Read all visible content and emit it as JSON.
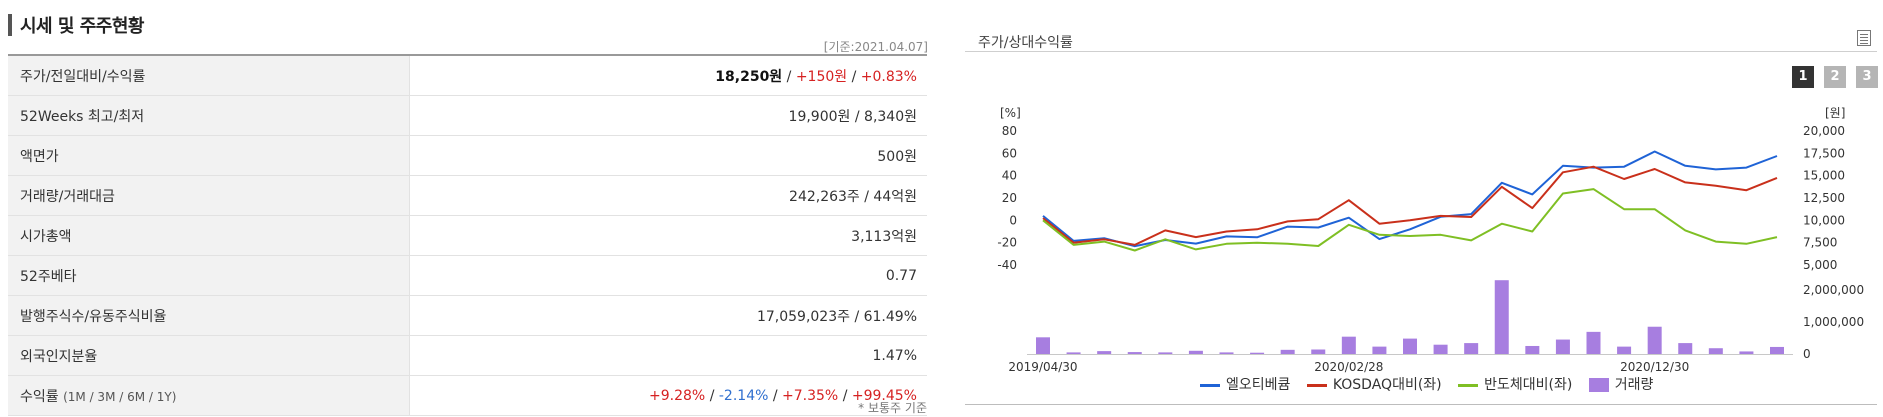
{
  "left": {
    "title": "시세 및 주주현황",
    "basis": "[기준:2021.04.07]",
    "rows": [
      {
        "label": "주가/전일대비/수익률",
        "price": "18,250원",
        "sep1": " / ",
        "change": "+150원",
        "sep2": " / ",
        "rate": "+0.83%"
      },
      {
        "label": "52Weeks 최고/최저",
        "value": "19,900원 / 8,340원"
      },
      {
        "label": "액면가",
        "value": "500원"
      },
      {
        "label": "거래량/거래대금",
        "value": "242,263주 / 44억원"
      },
      {
        "label": "시가총액",
        "value": "3,113억원"
      },
      {
        "label": "52주베타",
        "value": "0.77"
      },
      {
        "label": "발행주식수/유동주식비율",
        "value": "17,059,023주 / 61.49%"
      },
      {
        "label": "외국인지분율",
        "value": "1.47%"
      },
      {
        "label": "수익률",
        "label_sub": "(1M / 3M / 6M / 1Y)",
        "r1": "+9.28%",
        "r2": "-2.14%",
        "r3": "+7.35%",
        "r4": "+99.45%",
        "sep": " / "
      }
    ],
    "footnote": "* 보통주 기준"
  },
  "right": {
    "title": "주가/상대수익률",
    "pages": [
      "1",
      "2",
      "3"
    ],
    "legend": [
      "엘오티베큠",
      "KOSDAQ대비(좌)",
      "반도체대비(좌)",
      "거래량"
    ],
    "colors": {
      "stock": "#1f63d6",
      "kosdaq": "#c9301b",
      "semi": "#7fbf24",
      "volume": "#a77ee0"
    }
  },
  "chart_data": {
    "type": "line",
    "left_unit": "[%]",
    "right_unit": "[원]",
    "left_axis_ticks": [
      "80",
      "60",
      "40",
      "20",
      "0",
      "-20",
      "-40"
    ],
    "left_ylim": [
      -40,
      80
    ],
    "right_axis_ticks": [
      "20,000",
      "17,500",
      "15,000",
      "12,500",
      "10,000",
      "7,500",
      "5,000"
    ],
    "right_ylim": [
      5000,
      20000
    ],
    "volume_axis_ticks": [
      "2,000,000",
      "1,000,000",
      "0"
    ],
    "volume_ylim": [
      0,
      2400000
    ],
    "x_labels": [
      {
        "index": 0,
        "label": "2019/04/30"
      },
      {
        "index": 10,
        "label": "2020/02/28"
      },
      {
        "index": 20,
        "label": "2020/12/30"
      }
    ],
    "n_points": 25,
    "series": [
      {
        "name": "엘오티베큠",
        "axis": "right",
        "values": [
          10500,
          7700,
          8000,
          7100,
          7800,
          7400,
          8200,
          8100,
          9300,
          9200,
          10300,
          7900,
          9000,
          10400,
          10700,
          14200,
          12900,
          16100,
          15900,
          16000,
          17700,
          16100,
          15700,
          15900,
          17200
        ]
      },
      {
        "name": "KOSDAQ대비(좌)",
        "axis": "left",
        "values": [
          2,
          -20,
          -17,
          -22,
          -9,
          -15,
          -10,
          -8,
          -1,
          1,
          18,
          -3,
          0,
          4,
          3,
          30,
          11,
          43,
          48,
          37,
          46,
          34,
          31,
          27,
          38
        ]
      },
      {
        "name": "반도체대비(좌)",
        "axis": "left",
        "values": [
          0,
          -22,
          -19,
          -27,
          -17,
          -26,
          -21,
          -20,
          -21,
          -23,
          -4,
          -13,
          -14,
          -13,
          -18,
          -3,
          -10,
          24,
          28,
          10,
          10,
          -9,
          -19,
          -21,
          -15
        ]
      },
      {
        "name": "거래량",
        "axis": "volume",
        "values": [
          520000,
          50000,
          90000,
          60000,
          50000,
          100000,
          50000,
          40000,
          130000,
          140000,
          540000,
          230000,
          480000,
          290000,
          340000,
          2300000,
          250000,
          450000,
          690000,
          230000,
          850000,
          340000,
          180000,
          80000,
          220000
        ]
      }
    ]
  }
}
